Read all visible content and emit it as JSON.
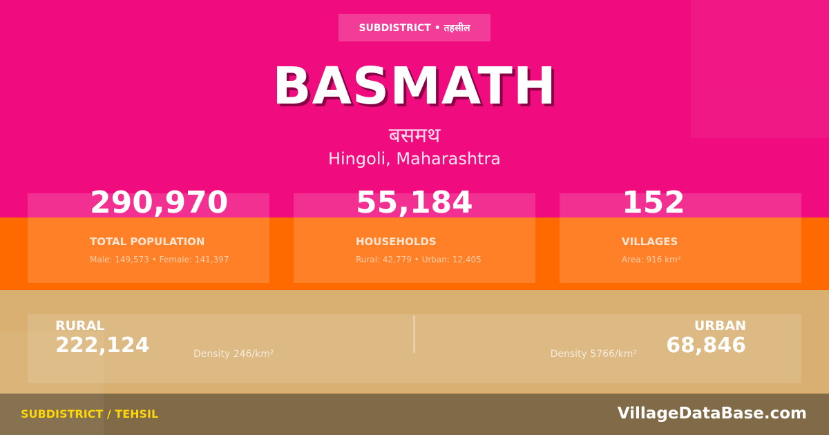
{
  "colors": {
    "pink": "#f00c7e",
    "orange": "#ff6a00",
    "tan": "#d9b072",
    "footer": "#806a47",
    "accent": "#ffd60a"
  },
  "header": {
    "badge": "SUBDISTRICT • तहसील",
    "title": "BASMATH",
    "title_hindi": "बसमथ",
    "location": "Hingoli, Maharashtra"
  },
  "stats": [
    {
      "value": "290,970",
      "label": "TOTAL POPULATION",
      "detail": "Male: 149,573 • Female: 141,397"
    },
    {
      "value": "55,184",
      "label": "HOUSEHOLDS",
      "detail": "Rural: 42,779 • Urban: 12,405"
    },
    {
      "value": "152",
      "label": "VILLAGES",
      "detail": "Area: 916 km²"
    }
  ],
  "split": {
    "rural": {
      "label": "RURAL",
      "value": "222,124",
      "density": "Density 246/km²"
    },
    "urban": {
      "label": "URBAN",
      "value": "68,846",
      "density": "Density 5766/km²"
    }
  },
  "footer": {
    "category": "SUBDISTRICT / TEHSIL",
    "site": "VillageDataBase.com"
  }
}
